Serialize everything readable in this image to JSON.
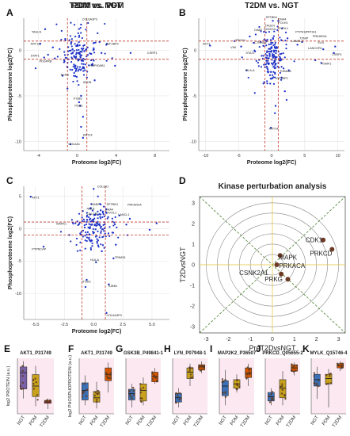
{
  "chart_data": [
    {
      "panel": "A",
      "type": "scatter",
      "title": "PDM vs. NGT",
      "xlabel": "Proteome log2(FC)",
      "ylabel": "Phosphoproteome log2(FC)",
      "xlim": [
        -5.5,
        9.5
      ],
      "ylim": [
        -11,
        3.5
      ],
      "xticks": [
        -4,
        0,
        4,
        8
      ],
      "yticks": [
        0,
        -5,
        -10
      ],
      "xtick_labels": [
        "-4",
        "0",
        "4",
        "8"
      ],
      "ytick_labels": [
        "0",
        "-5",
        "-10"
      ],
      "vlines": [
        -1,
        1
      ],
      "hlines": [
        -1,
        1
      ],
      "grid": true,
      "colors": {
        "points": "#1e32c8",
        "cutoff": "#c0392b",
        "grid": "#e6e6e6"
      },
      "cluster": {
        "x": 0.1,
        "y": -0.6,
        "sx": 0.9,
        "sy": 1.2,
        "n": 160
      },
      "points": [
        [
          -3.3,
          2.3
        ],
        [
          -3.4,
          -0.8
        ],
        [
          -3.8,
          0.7
        ],
        [
          -2.5,
          0.3
        ],
        [
          0.4,
          2.8
        ],
        [
          2.5,
          -0.3
        ],
        [
          1.0,
          -3.0
        ],
        [
          0.4,
          -5.0
        ],
        [
          0.2,
          -5.7
        ],
        [
          0.3,
          -6.1
        ],
        [
          0.6,
          -7.3
        ],
        [
          0.4,
          -8.4
        ],
        [
          -0.7,
          -10.3
        ],
        [
          0.6,
          -9.6
        ],
        [
          2.3,
          0.9
        ],
        [
          3.0,
          0.6
        ],
        [
          5.5,
          -0.3
        ],
        [
          1.5,
          -1.6
        ],
        [
          -1.5,
          -2.8
        ],
        [
          -2.3,
          -0.9
        ],
        [
          -3.0,
          -0.5
        ],
        [
          1.8,
          -3.3
        ],
        [
          -1.0,
          -4.2
        ],
        [
          3.9,
          -1.7
        ]
      ],
      "labels": [
        {
          "text": "COL6A3P3",
          "x": 0.5,
          "y": 3.3
        },
        {
          "text": "TAGLN",
          "x": -4.7,
          "y": 1.9
        },
        {
          "text": "KRT13",
          "x": -4.8,
          "y": 0.6
        },
        {
          "text": "STAT1",
          "x": -4.8,
          "y": -0.7
        },
        {
          "text": "PDGFRB",
          "x": -3.9,
          "y": -1.3
        },
        {
          "text": "ECM1",
          "x": -1.7,
          "y": -2.8
        },
        {
          "text": "CSRP1",
          "x": 7.2,
          "y": -0.4
        },
        {
          "text": "IGF2BP2",
          "x": 3.0,
          "y": 0.6
        },
        {
          "text": "HSP90AB1",
          "x": 1.3,
          "y": -1.8
        },
        {
          "text": "APOB",
          "x": 0.6,
          "y": -3.6
        },
        {
          "text": "ITGB5",
          "x": -0.4,
          "y": -5.4
        },
        {
          "text": "ITGB1",
          "x": -0.3,
          "y": -6.2
        },
        {
          "text": "KRT14",
          "x": 0.6,
          "y": -9.4
        },
        {
          "text": "COL6A1",
          "x": -0.9,
          "y": -10.4
        }
      ]
    },
    {
      "panel": "B",
      "type": "scatter",
      "title": "T2DM vs. NGT",
      "xlabel": "Proteome log2(FC)",
      "ylabel": "Phosphoproteome log2(FC)",
      "xlim": [
        -11,
        11
      ],
      "ylim": [
        -11,
        3.5
      ],
      "xticks": [
        -10,
        -5,
        0,
        5,
        10
      ],
      "yticks": [
        0,
        -5,
        -10
      ],
      "xtick_labels": [
        "-10",
        "-5",
        "0",
        "5",
        "10"
      ],
      "ytick_labels": [
        "0",
        "-5",
        "-10"
      ],
      "vlines": [
        -1,
        1
      ],
      "hlines": [
        -1,
        1
      ],
      "grid": true,
      "colors": {
        "points": "#1e32c8",
        "cutoff": "#c0392b",
        "grid": "#e6e6e6"
      },
      "cluster": {
        "x": 0.0,
        "y": -0.5,
        "sx": 1.1,
        "sy": 1.5,
        "n": 170
      },
      "points": [
        [
          -9.3,
          0.5
        ],
        [
          1.0,
          3.2
        ],
        [
          1.6,
          2.4
        ],
        [
          2.4,
          1.3
        ],
        [
          3.9,
          0.6
        ],
        [
          4.6,
          0.9
        ],
        [
          7.8,
          0.1
        ],
        [
          9.4,
          -0.3
        ],
        [
          9.6,
          0.4
        ],
        [
          7.5,
          -1.4
        ],
        [
          -5.6,
          1.0
        ],
        [
          -4.6,
          0.4
        ],
        [
          -3.3,
          1.5
        ],
        [
          -2.7,
          0.8
        ],
        [
          2.6,
          -2.2
        ],
        [
          1.5,
          -3.0
        ],
        [
          2.0,
          -4.5
        ],
        [
          -1.1,
          -3.5
        ],
        [
          0.5,
          -6.9
        ],
        [
          0.6,
          -6.1
        ],
        [
          -0.1,
          -8.5
        ],
        [
          6.6,
          -1.1
        ],
        [
          -3.8,
          -2.2
        ]
      ],
      "labels": [
        {
          "text": "SPTBN1",
          "x": -0.9,
          "y": 3.5
        },
        {
          "text": "DNA4",
          "x": 1.0,
          "y": 3.3
        },
        {
          "text": "FOLH1",
          "x": 1.0,
          "y": 2.9
        },
        {
          "text": "TAGLN",
          "x": -1.0,
          "y": 2.6
        },
        {
          "text": "OVOL1",
          "x": 1.0,
          "y": 2.3
        },
        {
          "text": "DAB2",
          "x": -2.6,
          "y": 2.1
        },
        {
          "text": "DOCK10",
          "x": -1.2,
          "y": 2.2
        },
        {
          "text": "PTPN12",
          "x": 3.6,
          "y": 1.9
        },
        {
          "text": "PPFIA1",
          "x": 5.2,
          "y": 1.9
        },
        {
          "text": "PRKAR2A",
          "x": 6.2,
          "y": 1.4
        },
        {
          "text": "TXNIP",
          "x": 4.2,
          "y": 1.2
        },
        {
          "text": "ELN",
          "x": 7.0,
          "y": 0.7
        },
        {
          "text": "LANCL2",
          "x": 3.0,
          "y": 0.9
        },
        {
          "text": "AKT1",
          "x": -10.4,
          "y": 0.6
        },
        {
          "text": "TROG1",
          "x": -5.5,
          "y": 1.0
        },
        {
          "text": "VIM",
          "x": -6.2,
          "y": 0.2
        },
        {
          "text": "CTNNA1",
          "x": -2.6,
          "y": 0.7
        },
        {
          "text": "LANCOR1",
          "x": 5.5,
          "y": 0.1
        },
        {
          "text": "STAT1",
          "x": -3.9,
          "y": -0.4
        },
        {
          "text": "CSRP1",
          "x": 9.1,
          "y": -0.6
        },
        {
          "text": "PSMF1",
          "x": 7.5,
          "y": -1.6
        },
        {
          "text": "HLA-A",
          "x": -3.9,
          "y": -2.3
        },
        {
          "text": "TUBA4A",
          "x": 1.2,
          "y": -2.4
        },
        {
          "text": "IGF2BP2",
          "x": 0.6,
          "y": -3.2
        },
        {
          "text": "KRT14",
          "x": -0.4,
          "y": -8.7
        }
      ]
    },
    {
      "panel": "C",
      "type": "scatter",
      "title": "T2DM vs. PDM",
      "xlabel": "Proteome log2(FC)",
      "ylabel": "Phosphoproteome log2(FC)",
      "xlim": [
        -6,
        6.5
      ],
      "ylim": [
        -14,
        6.5
      ],
      "xticks": [
        -5,
        -2.5,
        0,
        2.5,
        5
      ],
      "yticks": [
        5,
        0,
        -5,
        -10
      ],
      "xtick_labels": [
        "-5.0",
        "-2.5",
        "0.0",
        "2.5",
        "5.0"
      ],
      "ytick_labels": [
        "5",
        "0",
        "-5",
        "-10"
      ],
      "vlines": [
        -1,
        1
      ],
      "hlines": [
        -1,
        1
      ],
      "grid": true,
      "colors": {
        "points": "#1e32c8",
        "cutoff": "#c0392b",
        "grid": "#e6e6e6"
      },
      "cluster": {
        "x": 0.1,
        "y": 0.3,
        "sx": 0.75,
        "sy": 1.6,
        "n": 160
      },
      "points": [
        [
          -5.4,
          4.9
        ],
        [
          0.0,
          6.1
        ],
        [
          0.6,
          2.8
        ],
        [
          2.2,
          2.0
        ],
        [
          2.8,
          0.6
        ],
        [
          3.1,
          1.5
        ],
        [
          5.4,
          0.8
        ],
        [
          4.8,
          -0.2
        ],
        [
          -4.3,
          -2.8
        ],
        [
          -2.1,
          -1.0
        ],
        [
          -1.2,
          0.9
        ],
        [
          0.7,
          -3.5
        ],
        [
          1.7,
          -4.6
        ],
        [
          0.2,
          -5.2
        ],
        [
          -0.6,
          -7.9
        ],
        [
          1.3,
          -8.6
        ],
        [
          1.1,
          -13.0
        ],
        [
          -0.7,
          -9.0
        ],
        [
          1.9,
          -2.5
        ],
        [
          -0.4,
          -1.6
        ]
      ],
      "labels": [
        {
          "text": "COL6A1",
          "x": 0.3,
          "y": 6.3
        },
        {
          "text": "AKT1",
          "x": -5.3,
          "y": 4.6
        },
        {
          "text": "DAB2",
          "x": -0.2,
          "y": 3.6
        },
        {
          "text": "SPTBN1",
          "x": 1.1,
          "y": 3.6
        },
        {
          "text": "PRKAR2A",
          "x": 2.9,
          "y": 3.5
        },
        {
          "text": "NOL8",
          "x": -0.6,
          "y": 2.9
        },
        {
          "text": "DNA4",
          "x": 1.0,
          "y": 2.8
        },
        {
          "text": "OVOL1",
          "x": 1.1,
          "y": 2.3
        },
        {
          "text": "CALCRL",
          "x": -0.6,
          "y": 2.1
        },
        {
          "text": "LANCL1",
          "x": 2.1,
          "y": 2.0
        },
        {
          "text": "MAPK1",
          "x": -3.2,
          "y": 0.6
        },
        {
          "text": "PTPRCAP",
          "x": -5.3,
          "y": -3.3
        },
        {
          "text": "TRIM28",
          "x": 1.8,
          "y": -4.6
        },
        {
          "text": "HLA-A",
          "x": -0.3,
          "y": -5.0
        },
        {
          "text": "ITGA2",
          "x": -1.0,
          "y": -8.3
        },
        {
          "text": "TUBB1",
          "x": 1.2,
          "y": -9.0
        },
        {
          "text": "COL6A3P3",
          "x": 1.1,
          "y": -13.5
        }
      ]
    },
    {
      "panel": "D",
      "type": "scatter",
      "title": "Kinase perturbation analysis",
      "xlabel": "PreT2DvsNGT",
      "ylabel": "T2DvsNGT",
      "xlim": [
        -3.3,
        3.3
      ],
      "ylim": [
        -3.3,
        3.3
      ],
      "xticks": [
        -3,
        -2,
        -1,
        0,
        1,
        2,
        3
      ],
      "yticks": [
        3,
        2,
        1,
        0,
        -1,
        -2,
        -3
      ],
      "xtick_labels": [
        "-3",
        "-2",
        "-1",
        "0",
        "1",
        "2",
        "3"
      ],
      "ytick_labels": [
        "3",
        "2",
        "1",
        "0",
        "-1",
        "-2",
        "-3"
      ],
      "grid": false,
      "colors": {
        "points": "#6b3a24",
        "circle": "#888888",
        "diagonal": "#4a7d2a",
        "axis": "#e3c23a"
      },
      "circles": [
        0.5,
        1,
        1.5,
        2,
        2.5,
        3
      ],
      "points": [
        {
          "name": "CDK1",
          "x": 2.3,
          "y": 1.2
        },
        {
          "name": "PRKCD",
          "x": 2.7,
          "y": 0.75
        },
        {
          "name": "MAPK",
          "x": 0.35,
          "y": 0.45
        },
        {
          "name": "PRKACA",
          "x": 0.2,
          "y": 0.0
        },
        {
          "name": "CSNK2A1",
          "x": 0.4,
          "y": -0.45
        },
        {
          "name": "PRKG",
          "x": 0.7,
          "y": -0.7
        }
      ],
      "labels": [
        {
          "text": "CDK1",
          "x": 1.5,
          "y": 1.1
        },
        {
          "text": "PRKCD",
          "x": 1.7,
          "y": 0.45
        },
        {
          "text": "MAPK",
          "x": 0.3,
          "y": 0.25
        },
        {
          "text": "PRKACA",
          "x": 0.3,
          "y": -0.15
        },
        {
          "text": "CSNK2A1",
          "x": -1.5,
          "y": -0.5
        },
        {
          "text": "PRKG",
          "x": -0.35,
          "y": -0.8
        }
      ]
    },
    {
      "panel": "E",
      "type": "box",
      "title": "AKT1_P31749",
      "ylabel": "log2 PROTEIN (a.u.)",
      "categories": [
        "NGT",
        "PDM",
        "T2DM"
      ],
      "ylim": [
        -1.6,
        1.3
      ],
      "yticks": [
        1,
        0,
        -1
      ],
      "colors": {
        "NGT": "#7b62a8",
        "PDM": "#c9a11b",
        "T2DM": "#c0392b",
        "bg": "#f7d6e4"
      },
      "boxes": [
        {
          "min": -0.8,
          "q1": -0.3,
          "median": 0.55,
          "q3": 0.85,
          "max": 1.15
        },
        {
          "min": -1.2,
          "q1": -0.7,
          "median": -0.15,
          "q3": 0.45,
          "max": 0.9
        },
        {
          "min": -1.35,
          "q1": -1.05,
          "median": -0.98,
          "q3": -0.9,
          "max": -0.8
        }
      ]
    },
    {
      "panel": "F",
      "type": "box",
      "title": "AKT1_P31749",
      "ylabel": "log2 PHOSPHOPROTEIN (a.u.)",
      "categories": [
        "NGT",
        "PDM",
        "T2DM"
      ],
      "ylim": [
        -1.3,
        1.3
      ],
      "yticks": [
        1,
        0,
        -1
      ],
      "colors": {
        "NGT": "#3b6fb6",
        "PDM": "#c9a11b",
        "T2DM": "#d35400",
        "bg": "#f7d6e4"
      },
      "boxes": [
        {
          "min": -0.9,
          "q1": -0.65,
          "median": -0.2,
          "q3": 0.15,
          "max": 0.5
        },
        {
          "min": -1.05,
          "q1": -0.75,
          "median": -0.55,
          "q3": -0.25,
          "max": 0.2
        },
        {
          "min": -0.3,
          "q1": 0.25,
          "median": 0.55,
          "q3": 0.85,
          "max": 1.1
        }
      ]
    },
    {
      "panel": "G",
      "type": "box",
      "title": "GSK3B_P49841-1",
      "categories": [
        "NGT",
        "PDM",
        "T2DM"
      ],
      "ylim": [
        -1.3,
        1.3
      ],
      "yticks": [
        1,
        0,
        -1
      ],
      "colors": {
        "NGT": "#3b6fb6",
        "PDM": "#c9a11b",
        "T2DM": "#d35400",
        "bg": "#f7d6e4"
      },
      "boxes": [
        {
          "min": -1.0,
          "q1": -0.65,
          "median": -0.35,
          "q3": -0.15,
          "max": 0.1
        },
        {
          "min": -0.9,
          "q1": -0.7,
          "median": -0.2,
          "q3": 0.1,
          "max": 0.4
        },
        {
          "min": 0.1,
          "q1": 0.2,
          "median": 0.45,
          "q3": 0.65,
          "max": 0.85
        }
      ]
    },
    {
      "panel": "H",
      "type": "box",
      "title": "LYN_P07948-1",
      "categories": [
        "NGT",
        "PDM",
        "T2DM"
      ],
      "ylim": [
        -1.3,
        1.3
      ],
      "yticks": [
        1,
        0,
        -1
      ],
      "colors": {
        "NGT": "#3b6fb6",
        "PDM": "#c9a11b",
        "T2DM": "#d35400",
        "bg": "#f7d6e4"
      },
      "boxes": [
        {
          "min": -1.0,
          "q1": -0.75,
          "median": -0.55,
          "q3": -0.35,
          "max": -0.1
        },
        {
          "min": 0.0,
          "q1": 0.35,
          "median": 0.65,
          "q3": 0.85,
          "max": 1.05
        },
        {
          "min": 0.6,
          "q1": 0.75,
          "median": 0.9,
          "q3": 1.0,
          "max": 1.15
        }
      ]
    },
    {
      "panel": "I",
      "type": "box",
      "title": "MAP2K2_P36507",
      "categories": [
        "NGT",
        "PDM",
        "T2DM"
      ],
      "ylim": [
        -1.3,
        1.3
      ],
      "yticks": [
        1,
        0,
        -1
      ],
      "colors": {
        "NGT": "#3b6fb6",
        "PDM": "#c9a11b",
        "T2DM": "#d35400",
        "bg": "#f7d6e4"
      },
      "boxes": [
        {
          "min": -0.9,
          "q1": -0.45,
          "median": 0.0,
          "q3": 0.25,
          "max": 0.75
        },
        {
          "min": -0.3,
          "q1": -0.1,
          "median": 0.1,
          "q3": 0.3,
          "max": 0.55
        },
        {
          "min": 0.0,
          "q1": 0.4,
          "median": 0.6,
          "q3": 0.85,
          "max": 1.05
        }
      ]
    },
    {
      "panel": "J",
      "type": "box",
      "title": "PRKCD_Q05655-2",
      "categories": [
        "NGT",
        "PDM",
        "T2DM"
      ],
      "ylim": [
        -1.3,
        1.3
      ],
      "yticks": [
        1,
        0,
        -1
      ],
      "colors": {
        "NGT": "#3b6fb6",
        "PDM": "#c9a11b",
        "T2DM": "#d35400",
        "bg": "#f7d6e4"
      },
      "boxes": [
        {
          "min": -0.9,
          "q1": -0.7,
          "median": -0.5,
          "q3": -0.3,
          "max": -0.1
        },
        {
          "min": -0.9,
          "q1": -0.55,
          "median": -0.1,
          "q3": 0.3,
          "max": 0.7
        },
        {
          "min": 0.5,
          "q1": 0.7,
          "median": 0.85,
          "q3": 1.0,
          "max": 1.1
        }
      ]
    },
    {
      "panel": "K",
      "type": "box",
      "title": "MYLK_Q15746-4",
      "categories": [
        "NGT",
        "PDM",
        "T2DM"
      ],
      "ylim": [
        -1.3,
        1.3
      ],
      "yticks": [
        1,
        0,
        -1
      ],
      "colors": {
        "NGT": "#3b6fb6",
        "PDM": "#c9a11b",
        "T2DM": "#d35400",
        "bg": "#f7d6e4"
      },
      "boxes": [
        {
          "min": -0.6,
          "q1": 0.0,
          "median": 0.3,
          "q3": 0.55,
          "max": 0.9
        },
        {
          "min": -1.0,
          "q1": 0.1,
          "median": 0.35,
          "q3": 0.55,
          "max": 0.8
        },
        {
          "min": 0.7,
          "q1": 0.85,
          "median": 0.95,
          "q3": 1.05,
          "max": 1.15
        }
      ]
    }
  ]
}
